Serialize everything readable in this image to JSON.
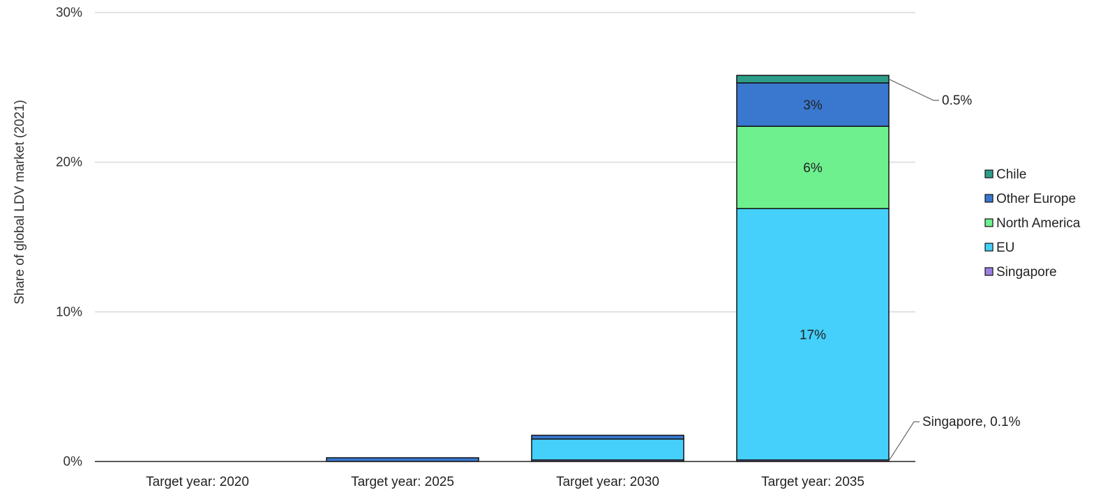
{
  "chart_data": {
    "type": "bar",
    "stacked": true,
    "ylabel": "Share of global LDV market (2021)",
    "xlabel": "",
    "ylim": [
      0,
      30
    ],
    "yticks": [
      0,
      10,
      20,
      30
    ],
    "ytick_suffix": "%",
    "grid": true,
    "legend_position": "right",
    "categories": [
      "Target year: 2020",
      "Target year: 2025",
      "Target year: 2030",
      "Target year: 2035"
    ],
    "series": [
      {
        "name": "Singapore",
        "color": "#9b7fe0",
        "values": [
          0.0,
          0.0,
          0.1,
          0.1
        ]
      },
      {
        "name": "EU",
        "color": "#45cffb",
        "values": [
          0.0,
          0.0,
          1.4,
          16.8
        ]
      },
      {
        "name": "North America",
        "color": "#6ef08e",
        "values": [
          0.0,
          0.0,
          0.0,
          5.5
        ]
      },
      {
        "name": "Other Europe",
        "color": "#3a78d0",
        "values": [
          0.0,
          0.25,
          0.25,
          2.9
        ]
      },
      {
        "name": "Chile",
        "color": "#2e9e8a",
        "values": [
          0.0,
          0.0,
          0.0,
          0.5
        ]
      }
    ],
    "legend_order": [
      "Chile",
      "Other Europe",
      "North America",
      "EU",
      "Singapore"
    ],
    "data_labels": [
      {
        "category": "Target year: 2035",
        "series": "EU",
        "text": "17%"
      },
      {
        "category": "Target year: 2035",
        "series": "North America",
        "text": "6%"
      },
      {
        "category": "Target year: 2035",
        "series": "Other Europe",
        "text": "3%"
      }
    ],
    "callouts": [
      {
        "category": "Target year: 2035",
        "series": "Chile",
        "text": "0.5%"
      },
      {
        "category": "Target year: 2035",
        "series": "Singapore",
        "text": "Singapore, 0.1%"
      }
    ]
  }
}
